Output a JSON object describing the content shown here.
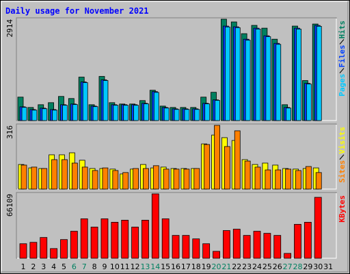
{
  "chart_data": [
    {
      "type": "bar",
      "title": "Daily usage for November 2021",
      "ylim": [
        0,
        2914
      ],
      "yticks": [
        2914
      ],
      "series": [
        {
          "name": "Hits",
          "color": "#008060",
          "values": [
            674,
            377,
            456,
            515,
            694,
            634,
            1249,
            456,
            1269,
            515,
            476,
            476,
            575,
            872,
            416,
            377,
            377,
            377,
            674,
            813,
            2914,
            2835,
            2498,
            2736,
            2656,
            2339,
            456,
            2716,
            1150,
            2775,
            0
          ]
        },
        {
          "name": "Files",
          "color": "#0040ff",
          "values": [
            396,
            317,
            357,
            317,
            456,
            476,
            1110,
            416,
            1170,
            456,
            456,
            456,
            496,
            833,
            377,
            337,
            337,
            337,
            496,
            595,
            2716,
            2696,
            2339,
            2656,
            2438,
            2220,
            377,
            2656,
            1070,
            2735,
            0
          ]
        },
        {
          "name": "Pages",
          "color": "#00c8ff",
          "values": [
            380,
            300,
            340,
            300,
            440,
            460,
            1090,
            400,
            1150,
            440,
            440,
            440,
            480,
            810,
            360,
            320,
            320,
            320,
            480,
            580,
            2690,
            2670,
            2310,
            2630,
            2410,
            2190,
            360,
            2630,
            1050,
            2710,
            0
          ]
        }
      ]
    },
    {
      "type": "bar",
      "ylim": [
        0,
        316
      ],
      "yticks": [
        316
      ],
      "series": [
        {
          "name": "Visits",
          "color": "#ffff00",
          "values": [
            122,
            105,
            102,
            170,
            170,
            180,
            143,
            102,
            102,
            99,
            75,
            99,
            122,
            105,
            109,
            102,
            102,
            102,
            224,
            268,
            255,
            241,
            146,
            122,
            129,
            119,
            102,
            99,
            102,
            105,
            0
          ]
        },
        {
          "name": "Sites",
          "color": "#ff8000",
          "values": [
            119,
            109,
            102,
            146,
            146,
            129,
            109,
            92,
            105,
            92,
            82,
            102,
            102,
            116,
            99,
            99,
            99,
            102,
            221,
            316,
            211,
            289,
            139,
            109,
            95,
            95,
            99,
            92,
            112,
            82,
            0
          ]
        }
      ]
    },
    {
      "type": "bar",
      "ylim": [
        0,
        66109
      ],
      "yticks": [
        66109
      ],
      "categories": [
        "1",
        "2",
        "3",
        "4",
        "5",
        "6",
        "7",
        "8",
        "9",
        "10",
        "11",
        "12",
        "13",
        "14",
        "15",
        "16",
        "17",
        "18",
        "19",
        "20",
        "21",
        "22",
        "23",
        "24",
        "25",
        "26",
        "27",
        "28",
        "29",
        "30",
        "31"
      ],
      "category_colors": [
        "#000000",
        "#000000",
        "#000000",
        "#000000",
        "#000000",
        "#008060",
        "#008060",
        "#000000",
        "#000000",
        "#000000",
        "#000000",
        "#000000",
        "#008060",
        "#008060",
        "#000000",
        "#000000",
        "#000000",
        "#000000",
        "#000000",
        "#008060",
        "#008060",
        "#000000",
        "#000000",
        "#000000",
        "#000000",
        "#000000",
        "#008060",
        "#008060",
        "#000000",
        "#000000",
        "#000000"
      ],
      "series": [
        {
          "name": "KBytes",
          "color": "#ff0000",
          "values": [
            14930,
            16350,
            21330,
            9950,
            19200,
            27730,
            40530,
            32000,
            40530,
            36970,
            39100,
            32000,
            39100,
            66109,
            40530,
            23460,
            23460,
            19910,
            14930,
            7110,
            28440,
            29860,
            23460,
            27730,
            25600,
            23460,
            4980,
            34840,
            36970,
            62570,
            0
          ]
        }
      ]
    }
  ]
}
